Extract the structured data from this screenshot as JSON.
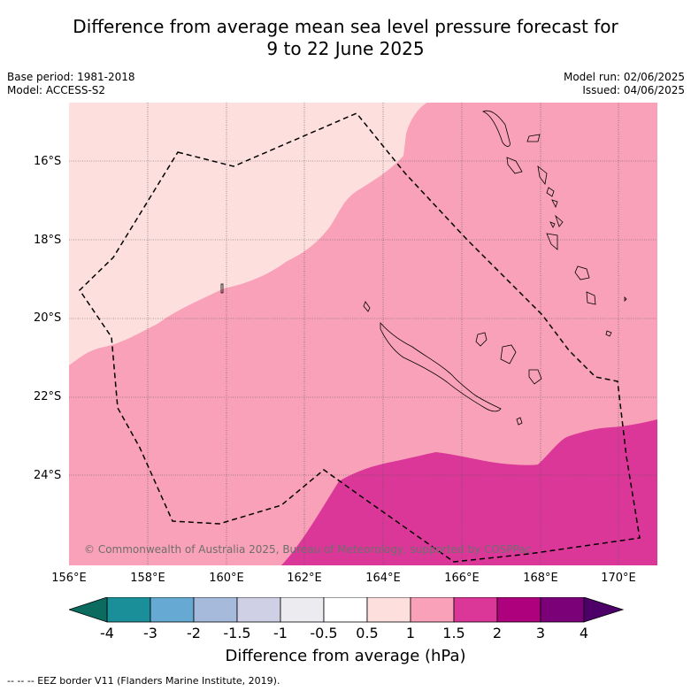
{
  "title_line1": "Difference from average mean sea level pressure forecast for",
  "title_line2": "9 to 22 June 2025",
  "base_period": "Base period: 1981-2018",
  "model": "Model: ACCESS-S2",
  "model_run": "Model run: 02/06/2025",
  "issued": "Issued: 04/06/2025",
  "lat_labels": [
    "16°S",
    "18°S",
    "20°S",
    "22°S",
    "24°S"
  ],
  "lon_labels": [
    "156°E",
    "158°E",
    "160°E",
    "162°E",
    "164°E",
    "166°E",
    "168°E",
    "170°E"
  ],
  "copyright": "© Commonwealth of Australia 2025, Bureau of Meteorology, supported by COSPPac",
  "colorbar": {
    "ticks": [
      "-4",
      "-3",
      "-2",
      "-1.5",
      "-1",
      "-0.5",
      "0.5",
      "1",
      "1.5",
      "2",
      "3",
      "4"
    ],
    "colors": [
      "#1a8f9a",
      "#66a9d3",
      "#a6bbdc",
      "#cfd0e6",
      "#ecebf0",
      "#ffffff",
      "#fde0de",
      "#f9a1b8",
      "#db3798",
      "#ae017e",
      "#7a0177"
    ],
    "under_color": "#0b6b5f",
    "over_color": "#4d0067",
    "label": "Difference from average (hPa)"
  },
  "legend": "-- -- -- EEZ border V11 (Flanders Marine Institute, 2019)."
}
